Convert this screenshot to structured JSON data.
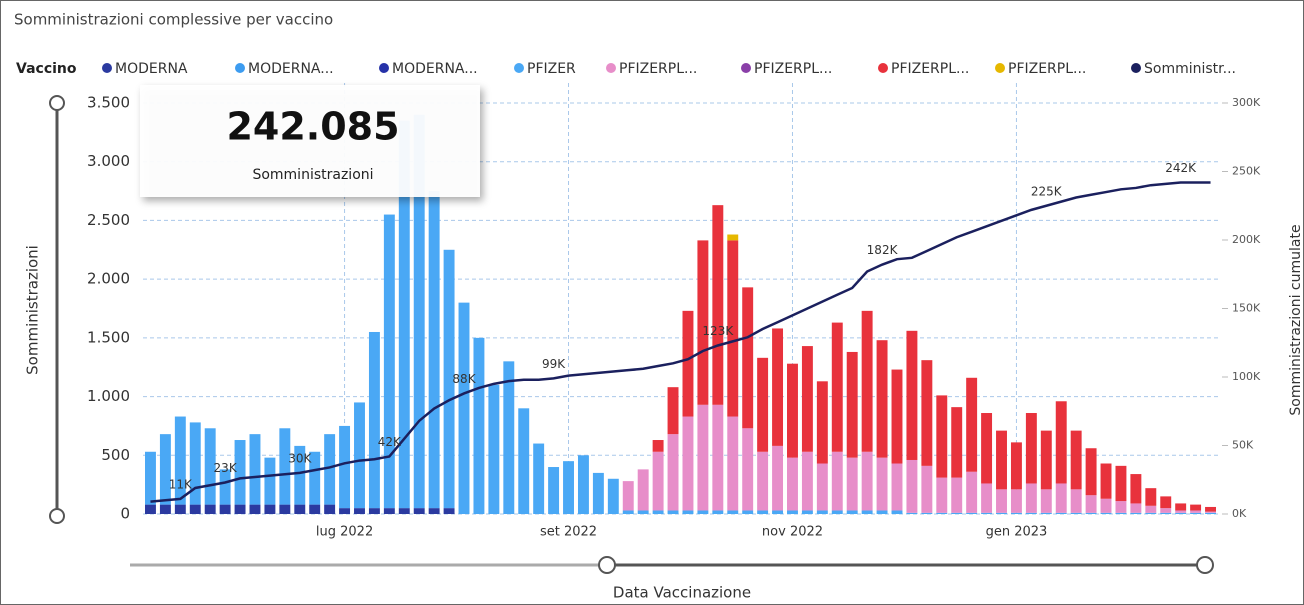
{
  "chart_data": {
    "type": "bar",
    "title": "Somministrazioni complessive per vaccino",
    "legend_title": "Vaccino",
    "card": {
      "value": "242.085",
      "label": "Somministrazioni"
    },
    "ylabel": "Somministrazioni",
    "y2label": "Somministrazioni cumulate",
    "xlabel": "Data Vaccinazione",
    "stacked": true,
    "grid": true,
    "categories": [
      null,
      null,
      null,
      null,
      null,
      null,
      null,
      null,
      null,
      null,
      null,
      null,
      null,
      "lug 2022",
      null,
      null,
      null,
      null,
      null,
      null,
      null,
      null,
      null,
      null,
      null,
      null,
      null,
      null,
      "set 2022",
      null,
      null,
      null,
      null,
      null,
      null,
      null,
      null,
      null,
      null,
      null,
      null,
      null,
      null,
      "nov 2022",
      null,
      null,
      null,
      null,
      null,
      null,
      null,
      null,
      null,
      null,
      null,
      null,
      null,
      null,
      "gen 2023",
      null,
      null,
      null,
      null,
      null,
      null,
      null,
      null,
      null,
      null,
      null,
      null,
      null
    ],
    "ylim": [
      0,
      3500
    ],
    "yticks": [
      0,
      500,
      {
        "value": 1000,
        "label": "1.000"
      },
      {
        "value": 1500,
        "label": "1.500"
      },
      {
        "value": 2000,
        "label": "2.000"
      },
      {
        "value": 2500,
        "label": "2.500"
      },
      {
        "value": 3000,
        "label": "3.000"
      },
      {
        "value": 3500,
        "label": "3.500"
      }
    ],
    "y2lim": [
      0,
      300000
    ],
    "y2ticks": [
      {
        "value": 0,
        "label": "0K"
      },
      {
        "value": 50000,
        "label": "50K"
      },
      {
        "value": 100000,
        "label": "100K"
      },
      {
        "value": 150000,
        "label": "150K"
      },
      {
        "value": 200000,
        "label": "200K"
      },
      {
        "value": 250000,
        "label": "250K"
      },
      {
        "value": 300000,
        "label": "300K"
      }
    ],
    "series": [
      {
        "name": "MODERNA",
        "color": "#2b3aa0",
        "values": [
          80,
          80,
          80,
          80,
          80,
          80,
          80,
          80,
          80,
          80,
          80,
          80,
          80,
          50,
          50,
          50,
          50,
          50,
          50,
          50,
          50,
          0,
          0,
          0,
          0,
          0,
          0,
          0,
          0,
          0,
          0,
          0,
          0,
          0,
          0,
          0,
          0,
          0,
          0,
          0,
          0,
          0,
          0,
          0,
          0,
          0,
          0,
          0,
          0,
          0,
          0,
          0,
          0,
          0,
          0,
          0,
          0,
          0,
          0,
          0,
          0,
          0,
          0,
          0,
          0,
          0,
          0,
          0,
          0,
          0,
          0,
          0
        ]
      },
      {
        "name": "MODERNA...",
        "color": "#3d9cf0",
        "values": [
          0,
          0,
          0,
          0,
          0,
          0,
          0,
          0,
          0,
          0,
          0,
          0,
          0,
          0,
          0,
          0,
          0,
          0,
          0,
          0,
          0,
          0,
          0,
          0,
          0,
          0,
          0,
          0,
          0,
          0,
          0,
          0,
          0,
          0,
          0,
          0,
          0,
          0,
          0,
          0,
          0,
          0,
          0,
          0,
          0,
          0,
          0,
          0,
          0,
          0,
          0,
          0,
          0,
          0,
          0,
          0,
          0,
          0,
          0,
          0,
          0,
          0,
          0,
          0,
          0,
          0,
          0,
          0,
          0,
          0,
          0,
          0
        ]
      },
      {
        "name": "MODERNA...",
        "color": "#2632a8",
        "values": [
          0,
          0,
          0,
          0,
          0,
          0,
          0,
          0,
          0,
          0,
          0,
          0,
          0,
          0,
          0,
          0,
          0,
          0,
          0,
          0,
          0,
          0,
          0,
          0,
          0,
          0,
          0,
          0,
          0,
          0,
          0,
          0,
          0,
          0,
          0,
          0,
          0,
          0,
          0,
          0,
          0,
          0,
          0,
          0,
          0,
          0,
          0,
          0,
          0,
          0,
          0,
          0,
          0,
          0,
          0,
          0,
          0,
          0,
          0,
          0,
          0,
          0,
          0,
          0,
          0,
          0,
          0,
          0,
          0,
          0,
          0,
          0
        ]
      },
      {
        "name": "PFIZER",
        "color": "#4aa8f5",
        "values": [
          450,
          600,
          750,
          700,
          650,
          300,
          550,
          600,
          400,
          650,
          500,
          450,
          600,
          700,
          900,
          1500,
          2500,
          3300,
          3350,
          2700,
          2200,
          1800,
          1500,
          1100,
          1300,
          900,
          600,
          400,
          450,
          500,
          350,
          300,
          30,
          30,
          30,
          30,
          30,
          30,
          30,
          30,
          30,
          30,
          30,
          30,
          30,
          30,
          30,
          30,
          30,
          30,
          30,
          10,
          10,
          10,
          10,
          10,
          10,
          10,
          10,
          10,
          10,
          10,
          10,
          10,
          10,
          10,
          10,
          10,
          10,
          10,
          10,
          10
        ]
      },
      {
        "name": "PFIZERPL...",
        "color": "#e78ec9",
        "values": [
          0,
          0,
          0,
          0,
          0,
          0,
          0,
          0,
          0,
          0,
          0,
          0,
          0,
          0,
          0,
          0,
          0,
          0,
          0,
          0,
          0,
          0,
          0,
          0,
          0,
          0,
          0,
          0,
          0,
          0,
          0,
          0,
          250,
          350,
          500,
          650,
          800,
          900,
          900,
          800,
          700,
          500,
          550,
          450,
          500,
          400,
          500,
          450,
          500,
          450,
          400,
          450,
          400,
          300,
          300,
          350,
          250,
          200,
          200,
          250,
          200,
          250,
          200,
          150,
          120,
          100,
          80,
          60,
          40,
          20,
          20,
          10
        ]
      },
      {
        "name": "PFIZERPL...",
        "color": "#8a3fa8",
        "values": [
          0,
          0,
          0,
          0,
          0,
          0,
          0,
          0,
          0,
          0,
          0,
          0,
          0,
          0,
          0,
          0,
          0,
          0,
          0,
          0,
          0,
          0,
          0,
          0,
          0,
          0,
          0,
          0,
          0,
          0,
          0,
          0,
          0,
          0,
          0,
          0,
          0,
          0,
          0,
          0,
          0,
          0,
          0,
          0,
          0,
          0,
          0,
          0,
          0,
          0,
          0,
          0,
          0,
          0,
          0,
          0,
          0,
          0,
          0,
          0,
          0,
          0,
          0,
          0,
          0,
          0,
          0,
          0,
          0,
          0,
          0,
          0
        ]
      },
      {
        "name": "PFIZERPL...",
        "color": "#e8323c",
        "values": [
          0,
          0,
          0,
          0,
          0,
          0,
          0,
          0,
          0,
          0,
          0,
          0,
          0,
          0,
          0,
          0,
          0,
          0,
          0,
          0,
          0,
          0,
          0,
          0,
          0,
          0,
          0,
          0,
          0,
          0,
          0,
          0,
          0,
          0,
          100,
          400,
          900,
          1400,
          1700,
          1500,
          1200,
          800,
          1000,
          800,
          900,
          700,
          1100,
          900,
          1200,
          1000,
          800,
          1100,
          900,
          700,
          600,
          800,
          600,
          500,
          400,
          600,
          500,
          700,
          500,
          400,
          300,
          300,
          250,
          150,
          100,
          60,
          50,
          40
        ]
      },
      {
        "name": "PFIZERPL...",
        "color": "#e6b800",
        "values": [
          0,
          0,
          0,
          0,
          0,
          0,
          0,
          0,
          0,
          0,
          0,
          0,
          0,
          0,
          0,
          0,
          0,
          0,
          0,
          0,
          0,
          0,
          0,
          0,
          0,
          0,
          0,
          0,
          0,
          0,
          0,
          0,
          0,
          0,
          0,
          0,
          0,
          0,
          0,
          50,
          0,
          0,
          0,
          0,
          0,
          0,
          0,
          0,
          0,
          0,
          0,
          0,
          0,
          0,
          0,
          0,
          0,
          0,
          0,
          0,
          0,
          0,
          0,
          0,
          0,
          0,
          0,
          0,
          0,
          0,
          0,
          0
        ]
      },
      {
        "name": "Somministr...",
        "color": "#1b205e",
        "type": "line",
        "axis": "y2",
        "values": [
          9000,
          10000,
          11000,
          19000,
          21000,
          23000,
          26000,
          27000,
          28000,
          29000,
          30000,
          32000,
          34000,
          37000,
          39000,
          40000,
          42000,
          55000,
          68000,
          77000,
          83000,
          88000,
          92000,
          95000,
          97000,
          98000,
          98000,
          99000,
          101000,
          102000,
          103000,
          104000,
          105000,
          106000,
          108000,
          110000,
          113000,
          119000,
          123000,
          126000,
          129000,
          135000,
          140000,
          145000,
          150000,
          155000,
          160000,
          165000,
          177000,
          182000,
          186000,
          187000,
          192000,
          197000,
          202000,
          206000,
          210000,
          214000,
          218000,
          222000,
          225000,
          228000,
          231000,
          233000,
          235000,
          237000,
          238000,
          240000,
          241000,
          242000,
          242000,
          242000
        ],
        "value_labels": [
          null,
          null,
          "11K",
          null,
          null,
          "23K",
          null,
          null,
          null,
          null,
          "30K",
          null,
          null,
          null,
          null,
          null,
          "42K",
          null,
          null,
          null,
          null,
          "88K",
          null,
          null,
          null,
          null,
          null,
          "99K",
          null,
          null,
          null,
          null,
          null,
          null,
          null,
          null,
          null,
          null,
          "123K",
          null,
          null,
          null,
          null,
          null,
          null,
          null,
          null,
          null,
          null,
          "182K",
          null,
          null,
          null,
          null,
          null,
          null,
          null,
          null,
          null,
          null,
          "225K",
          null,
          null,
          null,
          null,
          null,
          null,
          null,
          null,
          "242K",
          null,
          null
        ]
      }
    ]
  }
}
